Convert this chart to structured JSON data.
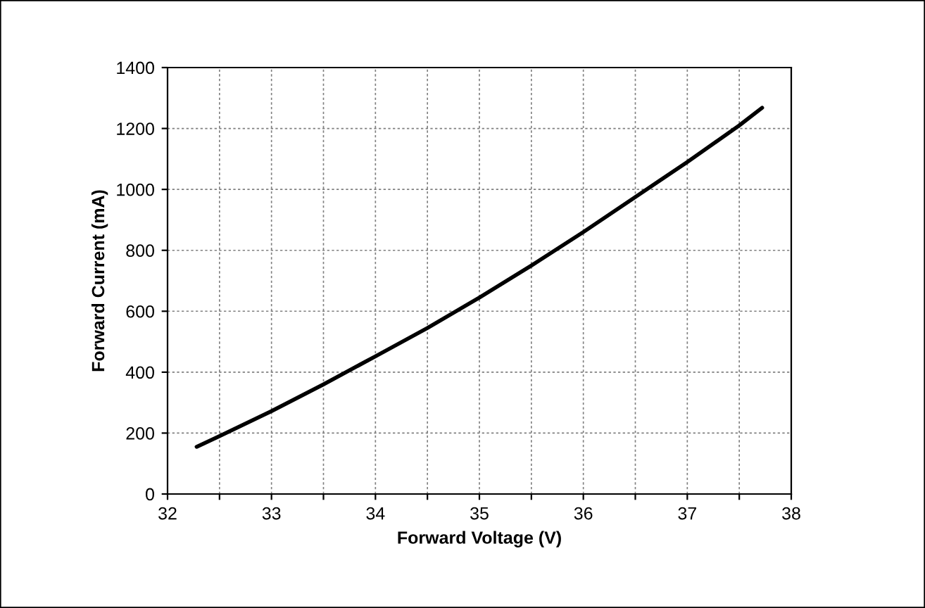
{
  "chart_data": {
    "type": "line",
    "xlabel": "Forward Voltage (V)",
    "ylabel": "Forward Current (mA)",
    "x": [
      32.28,
      32.5,
      33,
      33.5,
      34,
      34.5,
      35,
      35.5,
      36,
      36.5,
      37,
      37.5,
      37.72
    ],
    "series": [
      {
        "color": "#000000",
        "values": [
          155,
          190,
          272,
          360,
          452,
          545,
          645,
          750,
          860,
          975,
          1090,
          1210,
          1268
        ]
      }
    ],
    "xlim": [
      32,
      38
    ],
    "ylim": [
      0,
      1400
    ],
    "xticks": [
      32,
      {
        "value": 32.5,
        "label": null
      },
      33,
      {
        "value": 33.5,
        "label": null
      },
      34,
      {
        "value": 34.5,
        "label": null
      },
      35,
      {
        "value": 35.5,
        "label": null
      },
      36,
      {
        "value": 36.5,
        "label": null
      },
      37,
      {
        "value": 37.5,
        "label": null
      },
      38
    ],
    "yticks": [
      0,
      200,
      400,
      600,
      800,
      1000,
      1200,
      1400
    ],
    "grid": true,
    "legend": false,
    "marker": "none",
    "line_style": "solid"
  }
}
